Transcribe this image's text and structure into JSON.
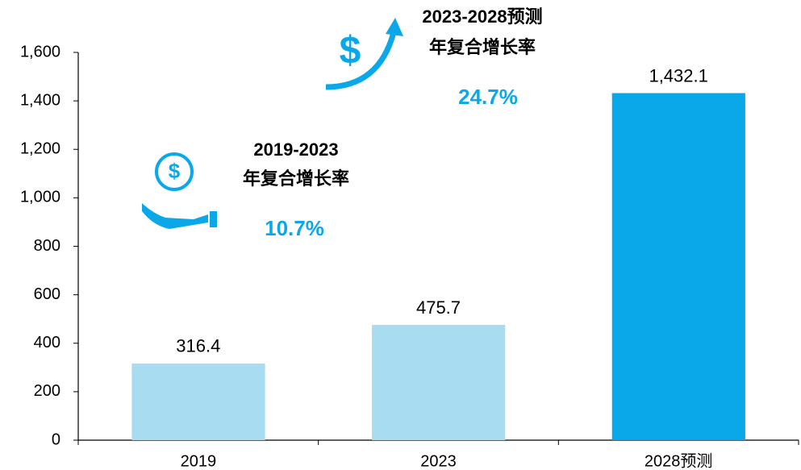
{
  "chart_data": {
    "type": "bar",
    "categories": [
      "2019",
      "2023",
      "2028预测"
    ],
    "values": [
      316.4,
      475.7,
      1432.1
    ],
    "value_labels": [
      "316.4",
      "475.7",
      "1,432.1"
    ],
    "colors": [
      "#a8dcf0",
      "#a8dcf0",
      "#0aa8e8"
    ],
    "ylim": [
      0,
      1600
    ],
    "yticks": [
      0,
      200,
      400,
      600,
      800,
      {
        "value": 1000,
        "label": "1,000"
      },
      {
        "value": 1200,
        "label": "1,200"
      },
      {
        "value": 1400,
        "label": "1,400"
      },
      {
        "value": 1600,
        "label": "1,600"
      }
    ],
    "annotations": [
      {
        "title": "2019-2023",
        "subtitle": "年复合增长率",
        "value": "10.7%"
      },
      {
        "title": "2023-2028预测",
        "subtitle": "年复合增长率",
        "value": "24.7%"
      }
    ]
  }
}
